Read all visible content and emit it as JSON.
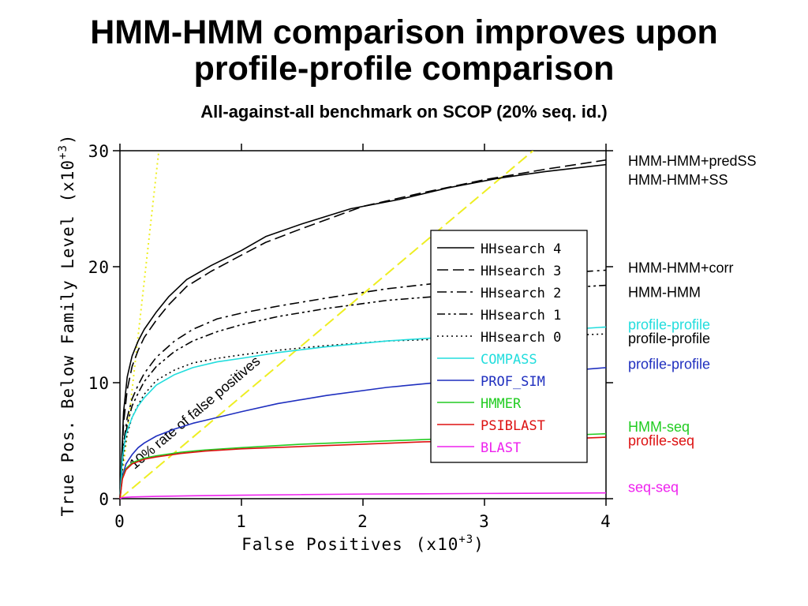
{
  "header": {
    "title_line1": "HMM-HMM comparison improves upon",
    "title_line2": "profile-profile comparison",
    "subtitle": "All-against-all benchmark on SCOP (20% seq. id.)"
  },
  "chart_data": {
    "type": "line",
    "xlabel": "False Positives",
    "xlabel_exp": "(x10",
    "xlabel_exp_sup": "+3",
    "xlabel_exp_close": ")",
    "ylabel": "True Pos. Below Family Level",
    "ylabel_exp": "(x10",
    "ylabel_exp_sup": "+3",
    "ylabel_exp_close": ")",
    "xlim": [
      0,
      4
    ],
    "ylim": [
      0,
      30
    ],
    "xticks": [
      0,
      1,
      2,
      3,
      4
    ],
    "yticks": [
      0,
      10,
      20,
      30
    ],
    "grid": false,
    "legend_position": "center-right",
    "series": [
      {
        "name": "HHsearch 4",
        "color": "#000000",
        "dash": "solid",
        "x": [
          0,
          0.03,
          0.06,
          0.1,
          0.15,
          0.2,
          0.3,
          0.4,
          0.55,
          0.75,
          1.0,
          1.2,
          1.5,
          1.9,
          2.3,
          2.7,
          3.1,
          3.5,
          4.0
        ],
        "y": [
          0,
          7.5,
          10.5,
          12.3,
          13.6,
          14.6,
          16.1,
          17.4,
          18.9,
          20.1,
          21.4,
          22.6,
          23.7,
          25.0,
          25.8,
          26.8,
          27.6,
          28.2,
          28.8
        ]
      },
      {
        "name": "HHsearch 3",
        "color": "#000000",
        "dash": "dashed",
        "x": [
          0,
          0.03,
          0.06,
          0.1,
          0.15,
          0.2,
          0.3,
          0.4,
          0.55,
          0.75,
          1.0,
          1.2,
          1.5,
          2.0,
          2.5,
          3.0,
          3.5,
          4.0
        ],
        "y": [
          0,
          6.5,
          9.4,
          11.4,
          12.8,
          13.9,
          15.4,
          16.7,
          18.3,
          19.6,
          21.0,
          22.1,
          23.3,
          25.2,
          26.4,
          27.5,
          28.4,
          29.2
        ]
      },
      {
        "name": "HHsearch 2",
        "color": "#000000",
        "dash": "dashdot",
        "x": [
          0,
          0.03,
          0.06,
          0.1,
          0.15,
          0.2,
          0.3,
          0.45,
          0.6,
          0.8,
          1.0,
          1.3,
          1.7,
          2.2,
          2.8,
          3.4,
          4.0
        ],
        "y": [
          0,
          4.8,
          7.0,
          8.6,
          9.8,
          10.8,
          12.2,
          13.6,
          14.6,
          15.5,
          16.0,
          16.6,
          17.3,
          18.1,
          18.8,
          19.3,
          19.7
        ]
      },
      {
        "name": "HHsearch 1",
        "color": "#000000",
        "dash": "dashdotdot",
        "x": [
          0,
          0.03,
          0.06,
          0.1,
          0.15,
          0.2,
          0.3,
          0.45,
          0.6,
          0.8,
          1.0,
          1.3,
          1.7,
          2.2,
          2.8,
          3.4,
          4.0
        ],
        "y": [
          0,
          4.3,
          6.4,
          8.0,
          9.1,
          10.1,
          11.4,
          12.7,
          13.6,
          14.4,
          15.0,
          15.7,
          16.4,
          17.1,
          17.6,
          18.0,
          18.4
        ]
      },
      {
        "name": "HHsearch 0",
        "color": "#000000",
        "dash": "dotted",
        "x": [
          0,
          0.03,
          0.06,
          0.1,
          0.15,
          0.2,
          0.3,
          0.45,
          0.6,
          0.8,
          1.0,
          1.3,
          1.7,
          2.2,
          2.8,
          3.4,
          4.0
        ],
        "y": [
          0,
          3.8,
          5.6,
          7.0,
          8.1,
          9.0,
          10.2,
          11.1,
          11.7,
          12.1,
          12.4,
          12.8,
          13.2,
          13.6,
          13.8,
          14.0,
          14.2
        ]
      },
      {
        "name": "COMPASS",
        "color": "#22dddd",
        "dash": "solid",
        "x": [
          0,
          0.02,
          0.05,
          0.1,
          0.15,
          0.2,
          0.3,
          0.45,
          0.6,
          0.8,
          1.0,
          1.3,
          1.7,
          2.2,
          2.8,
          3.4,
          4.0
        ],
        "y": [
          0,
          3.5,
          5.6,
          7.0,
          8.0,
          8.7,
          9.8,
          10.7,
          11.3,
          11.8,
          12.1,
          12.6,
          13.1,
          13.6,
          14.0,
          14.4,
          14.8
        ]
      },
      {
        "name": "PROF_SIM",
        "color": "#1f2fbf",
        "dash": "solid",
        "x": [
          0,
          0.02,
          0.05,
          0.1,
          0.15,
          0.2,
          0.3,
          0.45,
          0.6,
          0.8,
          1.0,
          1.3,
          1.7,
          2.2,
          2.8,
          3.4,
          4.0
        ],
        "y": [
          0,
          1.9,
          3.0,
          3.8,
          4.4,
          4.8,
          5.4,
          6.0,
          6.5,
          7.0,
          7.5,
          8.2,
          8.9,
          9.6,
          10.2,
          10.8,
          11.3
        ]
      },
      {
        "name": "HMMER",
        "color": "#22cc22",
        "dash": "solid",
        "x": [
          0,
          0.02,
          0.05,
          0.1,
          0.2,
          0.3,
          0.5,
          0.7,
          1.0,
          1.5,
          2.0,
          2.5,
          3.0,
          3.5,
          4.0
        ],
        "y": [
          0,
          1.8,
          2.6,
          3.1,
          3.5,
          3.7,
          4.0,
          4.2,
          4.4,
          4.7,
          4.9,
          5.1,
          5.3,
          5.4,
          5.6
        ]
      },
      {
        "name": "PSIBLAST",
        "color": "#dd1111",
        "dash": "solid",
        "x": [
          0,
          0.02,
          0.05,
          0.1,
          0.2,
          0.3,
          0.5,
          0.7,
          1.0,
          1.5,
          2.0,
          2.5,
          3.0,
          3.5,
          4.0
        ],
        "y": [
          0,
          1.7,
          2.5,
          3.0,
          3.4,
          3.6,
          3.9,
          4.1,
          4.3,
          4.5,
          4.7,
          4.9,
          5.0,
          5.1,
          5.3
        ]
      },
      {
        "name": "BLAST",
        "color": "#ee22ee",
        "dash": "solid",
        "x": [
          0,
          0.02,
          0.1,
          0.3,
          0.6,
          1.0,
          1.5,
          2.0,
          2.5,
          3.0,
          3.5,
          4.0
        ],
        "y": [
          0,
          0.1,
          0.15,
          0.2,
          0.25,
          0.3,
          0.35,
          0.4,
          0.42,
          0.45,
          0.47,
          0.5
        ]
      }
    ],
    "reference_lines": [
      {
        "label": "10% rate of false positives",
        "color": "#eeee22",
        "dash": "dashed",
        "x": [
          0,
          3.4
        ],
        "y": [
          0,
          30
        ]
      },
      {
        "label": "",
        "color": "#eeee22",
        "dash": "dotted",
        "x": [
          0,
          0.32
        ],
        "y": [
          0,
          30
        ]
      }
    ],
    "right_labels": [
      {
        "text": "HMM-HMM+predSS",
        "color": "#000000",
        "y": 29.1
      },
      {
        "text": "HMM-HMM+SS",
        "color": "#000000",
        "y": 27.5
      },
      {
        "text": "HMM-HMM+corr",
        "color": "#000000",
        "y": 19.9
      },
      {
        "text": "HMM-HMM",
        "color": "#000000",
        "y": 17.8
      },
      {
        "text": "profile-profile",
        "color": "#22dddd",
        "y": 15.0
      },
      {
        "text": "profile-profile",
        "color": "#000000",
        "y": 13.8
      },
      {
        "text": "profile-profile",
        "color": "#1f2fbf",
        "y": 11.6
      },
      {
        "text": "HMM-seq",
        "color": "#22cc22",
        "y": 6.2
      },
      {
        "text": "profile-seq",
        "color": "#dd1111",
        "y": 5.0
      },
      {
        "text": "seq-seq",
        "color": "#ee22ee",
        "y": 1.0
      }
    ]
  }
}
